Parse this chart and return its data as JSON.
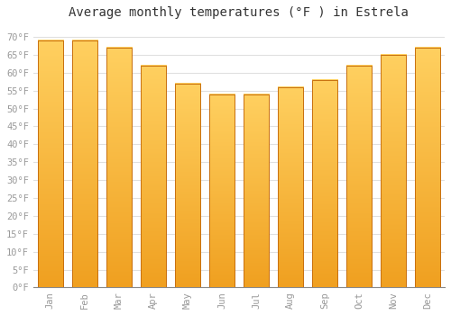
{
  "title": "Average monthly temperatures (°F ) in Estrela",
  "months": [
    "Jan",
    "Feb",
    "Mar",
    "Apr",
    "May",
    "Jun",
    "Jul",
    "Aug",
    "Sep",
    "Oct",
    "Nov",
    "Dec"
  ],
  "values": [
    69,
    69,
    67,
    62,
    57,
    54,
    54,
    56,
    58,
    62,
    65,
    67
  ],
  "bar_color_main": "#FFAA22",
  "bar_color_left_edge": "#E8880A",
  "bar_color_right_edge": "#E8880A",
  "bar_gradient_top": "#F5A623",
  "bar_gradient_bottom": "#FFD060",
  "background_color": "#FFFFFF",
  "plot_bg_color": "#FFFFFF",
  "grid_color": "#E0E0E0",
  "ylim": [
    0,
    73
  ],
  "yticks": [
    0,
    5,
    10,
    15,
    20,
    25,
    30,
    35,
    40,
    45,
    50,
    55,
    60,
    65,
    70
  ],
  "ytick_labels": [
    "0°F",
    "5°F",
    "10°F",
    "15°F",
    "20°F",
    "25°F",
    "30°F",
    "35°F",
    "40°F",
    "45°F",
    "50°F",
    "55°F",
    "60°F",
    "65°F",
    "70°F"
  ],
  "title_fontsize": 10,
  "tick_fontsize": 7.5,
  "tick_color": "#999999",
  "bar_width": 0.75
}
